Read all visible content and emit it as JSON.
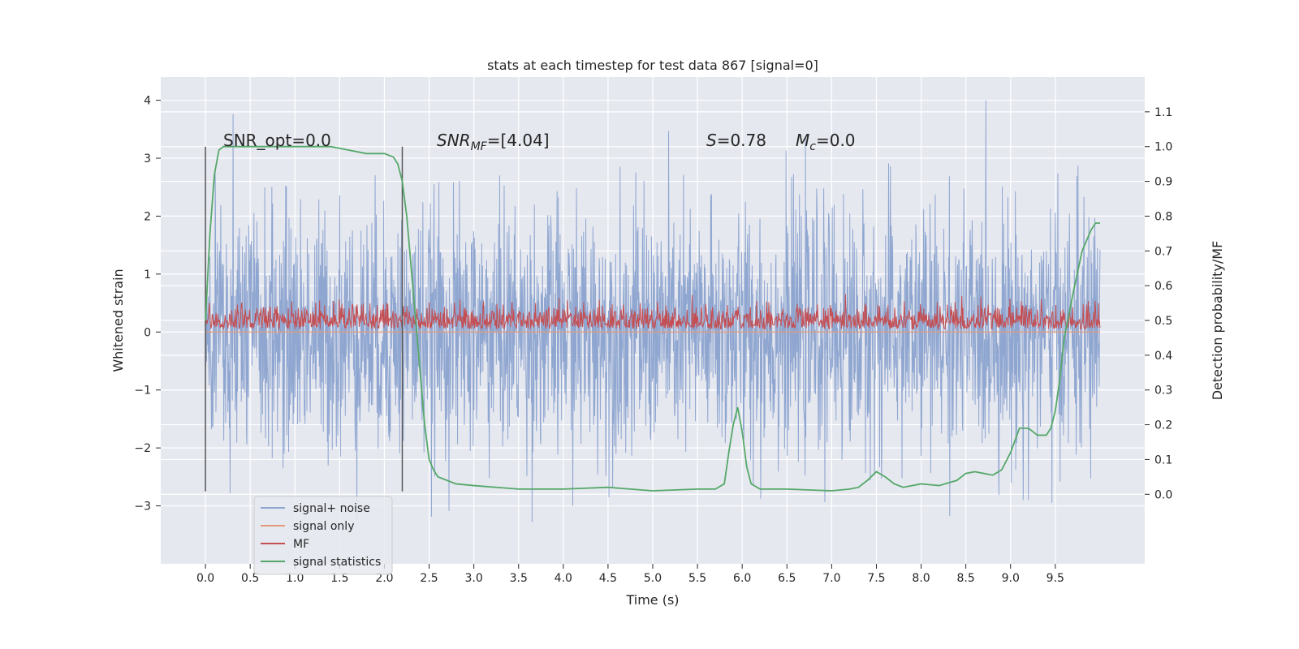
{
  "chart_data": {
    "type": "line",
    "title": "stats at each timestep for test data 867 [signal=0]",
    "xlabel": "Time (s)",
    "ylabel": "Whitened strain",
    "y2label": "Detection probability/MF",
    "xlim": [
      -0.5,
      10.5
    ],
    "ylim": [
      -4.0,
      4.4
    ],
    "y2lim": [
      -0.2,
      1.2
    ],
    "xticks": [
      "0.0",
      "0.5",
      "1.0",
      "1.5",
      "2.0",
      "2.5",
      "3.0",
      "3.5",
      "4.0",
      "4.5",
      "5.0",
      "5.5",
      "6.0",
      "6.5",
      "7.0",
      "7.5",
      "8.0",
      "8.5",
      "9.0",
      "9.5"
    ],
    "yticks": [
      4,
      3,
      2,
      1,
      0,
      -1,
      -2,
      -3
    ],
    "y2ticks": [
      "1.1",
      "1.0",
      "0.9",
      "0.8",
      "0.7",
      "0.6",
      "0.5",
      "0.4",
      "0.3",
      "0.2",
      "0.1",
      "0.0"
    ],
    "grid": true,
    "legend_position": "bottom-left",
    "colors": {
      "noise": "#8fa6d0",
      "signal": "#e39a7b",
      "mf": "#c44e52",
      "stat": "#55a868",
      "vline": "#555555",
      "bg": "#e6e8f0"
    },
    "annotations": {
      "snr_opt": "SNR_opt=0.0",
      "snr_mf_prefix": "SNR",
      "snr_mf_sub": "MF",
      "snr_mf_value": "=[4.04]",
      "s_prefix": "S",
      "s_value": "=0.78",
      "mc_prefix": "M",
      "mc_sub": "c",
      "mc_value": "=0.0"
    },
    "vlines": [
      0.0,
      2.2
    ],
    "legend": [
      "signal+ noise",
      "signal only",
      "MF",
      "signal statistics"
    ],
    "signal_statistics": {
      "x": [
        0.0,
        0.05,
        0.1,
        0.15,
        0.2,
        0.3,
        0.5,
        1.0,
        1.4,
        1.6,
        1.8,
        2.0,
        2.1,
        2.15,
        2.2,
        2.25,
        2.3,
        2.35,
        2.4,
        2.45,
        2.5,
        2.55,
        2.6,
        2.7,
        2.8,
        3.0,
        3.5,
        4.0,
        4.5,
        5.0,
        5.5,
        5.7,
        5.8,
        5.85,
        5.9,
        5.95,
        6.0,
        6.05,
        6.1,
        6.2,
        6.5,
        7.0,
        7.2,
        7.3,
        7.4,
        7.5,
        7.6,
        7.7,
        7.8,
        8.0,
        8.2,
        8.4,
        8.5,
        8.6,
        8.8,
        8.9,
        9.0,
        9.1,
        9.2,
        9.3,
        9.4,
        9.45,
        9.5,
        9.55,
        9.6,
        9.7,
        9.8,
        9.9,
        9.95,
        10.0
      ],
      "y": [
        0.5,
        0.75,
        0.92,
        0.99,
        1.0,
        1.0,
        1.0,
        1.0,
        1.0,
        0.99,
        0.98,
        0.98,
        0.97,
        0.95,
        0.9,
        0.8,
        0.65,
        0.5,
        0.35,
        0.2,
        0.1,
        0.07,
        0.05,
        0.04,
        0.03,
        0.025,
        0.015,
        0.015,
        0.02,
        0.01,
        0.015,
        0.015,
        0.03,
        0.12,
        0.2,
        0.25,
        0.18,
        0.08,
        0.03,
        0.015,
        0.015,
        0.01,
        0.015,
        0.02,
        0.04,
        0.065,
        0.05,
        0.03,
        0.02,
        0.03,
        0.025,
        0.04,
        0.06,
        0.065,
        0.055,
        0.07,
        0.12,
        0.19,
        0.19,
        0.17,
        0.17,
        0.19,
        0.24,
        0.33,
        0.45,
        0.58,
        0.7,
        0.76,
        0.78,
        0.78
      ]
    },
    "noise_envelope": {
      "x": [
        0.0,
        10.0
      ],
      "y_min_approx": -3.5,
      "y_max_approx": 4.0
    },
    "mf_envelope": {
      "x": [
        0.0,
        10.0
      ],
      "y_min_approx": 0.0,
      "y_max_approx": 0.85
    }
  }
}
